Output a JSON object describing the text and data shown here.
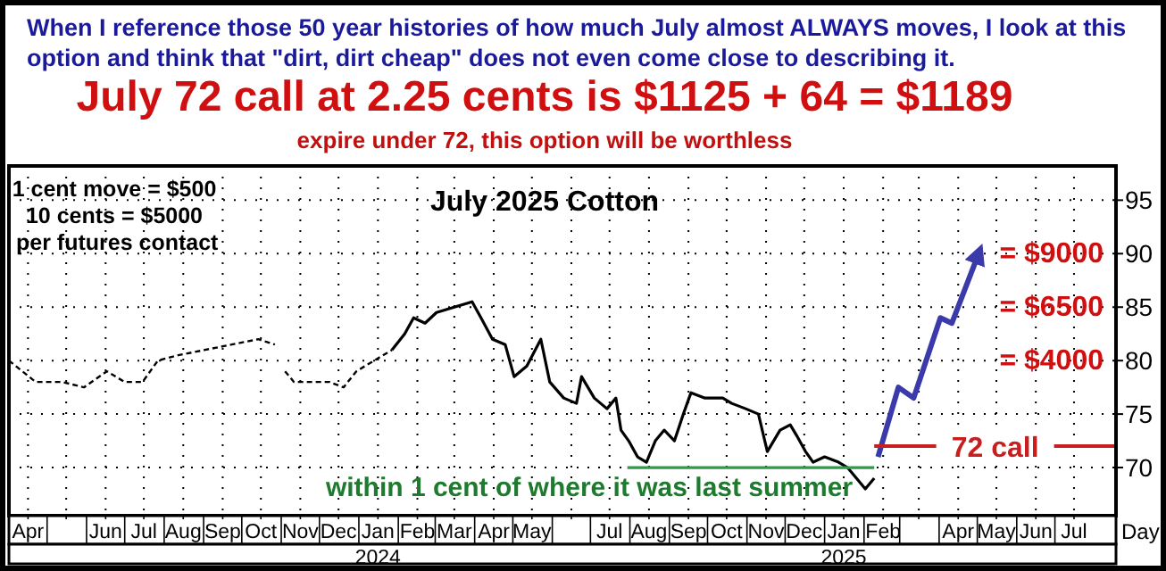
{
  "chart_data": {
    "type": "line",
    "title": "July 2025 Cotton",
    "xlabel": "Day",
    "xlim": [
      "2023-04-01",
      "2025-08-18"
    ],
    "ylim": [
      65.5,
      98.2
    ],
    "yticks": [
      70,
      75,
      80,
      85,
      90,
      95
    ],
    "xticks": [
      {
        "value": "2023-04-16",
        "label": "Apr"
      },
      {
        "value": "2023-05-16",
        "label": null
      },
      {
        "value": "2023-06-16",
        "label": "Jun"
      },
      {
        "value": "2023-07-16",
        "label": "Jul"
      },
      {
        "value": "2023-08-16",
        "label": "Aug"
      },
      {
        "value": "2023-09-16",
        "label": "Sep"
      },
      {
        "value": "2023-10-16",
        "label": "Oct"
      },
      {
        "value": "2023-11-16",
        "label": "Nov"
      },
      {
        "value": "2023-12-16",
        "label": "Dec"
      },
      {
        "value": "2024-01-16",
        "label": "Jan 2024"
      },
      {
        "value": "2024-02-16",
        "label": "Feb"
      },
      {
        "value": "2024-03-16",
        "label": "Mar"
      },
      {
        "value": "2024-04-16",
        "label": "Apr"
      },
      {
        "value": "2024-05-16",
        "label": "May"
      },
      {
        "value": "2024-06-16",
        "label": null
      },
      {
        "value": "2024-07-16",
        "label": "Jul"
      },
      {
        "value": "2024-08-16",
        "label": "Aug"
      },
      {
        "value": "2024-09-16",
        "label": "Sep"
      },
      {
        "value": "2024-10-16",
        "label": "Oct"
      },
      {
        "value": "2024-11-16",
        "label": "Nov"
      },
      {
        "value": "2024-12-16",
        "label": "Dec"
      },
      {
        "value": "2025-01-16",
        "label": "Jan 2025"
      },
      {
        "value": "2025-02-16",
        "label": "Feb"
      },
      {
        "value": "2025-03-16",
        "label": null
      },
      {
        "value": "2025-04-16",
        "label": "Apr"
      },
      {
        "value": "2025-05-16",
        "label": "May"
      },
      {
        "value": "2025-06-16",
        "label": "Jun"
      },
      {
        "value": "2025-07-16",
        "label": "Jul"
      }
    ],
    "grid": true,
    "marker": "none",
    "series": [
      {
        "color": "#000000",
        "line_style": "dashed",
        "x": [
          "2023-04-01",
          "2023-04-22",
          "2023-05-13",
          "2023-05-30",
          "2023-06-17",
          "2023-07-01",
          "2023-07-15",
          "2023-07-27",
          "2023-08-12",
          "2023-09-02",
          "2023-09-23",
          "2023-10-14",
          "2023-10-27",
          "2023-11-01",
          "2023-11-04",
          "2023-11-11",
          "2023-11-25",
          "2023-12-09",
          "2023-12-20",
          "2023-12-30",
          "2024-01-13",
          "2024-01-27"
        ],
        "values": [
          80,
          78,
          78,
          77.5,
          79,
          78,
          78,
          80,
          80.5,
          81,
          81.5,
          82,
          81.5,
          null,
          79,
          78,
          78,
          78,
          77.5,
          79,
          80,
          81
        ]
      },
      {
        "color": "#000000",
        "line_style": "solid",
        "x": [
          "2024-01-27",
          "2024-02-06",
          "2024-02-13",
          "2024-02-22",
          "2024-03-02",
          "2024-03-16",
          "2024-03-30",
          "2024-04-06",
          "2024-04-15",
          "2024-04-25",
          "2024-05-02",
          "2024-05-12",
          "2024-05-23",
          "2024-05-30",
          "2024-06-10",
          "2024-06-20",
          "2024-06-24",
          "2024-07-04",
          "2024-07-14",
          "2024-07-21",
          "2024-07-25",
          "2024-07-31",
          "2024-08-07",
          "2024-08-14",
          "2024-08-21",
          "2024-08-28",
          "2024-09-05",
          "2024-09-12",
          "2024-09-18",
          "2024-09-29",
          "2024-10-13",
          "2024-10-20",
          "2024-10-31",
          "2024-11-10",
          "2024-11-17",
          "2024-11-27",
          "2024-12-05",
          "2024-12-10",
          "2024-12-17",
          "2024-12-23",
          "2025-01-01",
          "2025-01-12",
          "2025-01-19",
          "2025-01-26",
          "2025-02-02",
          "2025-02-09"
        ],
        "values": [
          81,
          82.5,
          84,
          83.5,
          84.5,
          85,
          85.5,
          84,
          82,
          81.5,
          78.5,
          79.5,
          82,
          78,
          76.5,
          76,
          78.5,
          76.5,
          75.5,
          76.5,
          73.5,
          72.5,
          71,
          70.5,
          72.5,
          73.5,
          72.5,
          75,
          77,
          76.5,
          76.5,
          76,
          75.5,
          75,
          71.5,
          73.5,
          74,
          73,
          71.5,
          70.5,
          71,
          70.5,
          70,
          69,
          68,
          69
        ]
      },
      {
        "color": "#3a3aaa",
        "line_style": "solid",
        "x": [
          "2025-02-12",
          "2025-02-28",
          "2025-03-12",
          "2025-04-02",
          "2025-04-11",
          "2025-05-02"
        ],
        "values": [
          71,
          77.5,
          76.5,
          84,
          83.5,
          90
        ]
      },
      {
        "color": "#2e9a48",
        "line_style": "solid",
        "x": [
          "2024-07-30",
          "2025-02-09"
        ],
        "values": [
          70,
          70
        ]
      },
      {
        "name": "72 call",
        "color": "#c81e1e",
        "line_style": "solid",
        "x": [
          "2025-02-09",
          "2025-08-18"
        ],
        "values": [
          72,
          72
        ]
      }
    ],
    "annotations": [
      "When I reference those 50 year histories of how much July almost ALWAYS moves, I look at this option and think that \"dirt, dirt cheap\" does not even come close to describing it.",
      "July 72 call at 2.25 cents is $1125 + 64 = $1189",
      "expire under 72, this option will be worthless",
      "1 cent move = $500",
      "10 cents = $5000",
      "per futures contact",
      "within 1 cent of where it was last summer",
      "= $9000",
      "= $6500",
      "= $4000"
    ]
  }
}
